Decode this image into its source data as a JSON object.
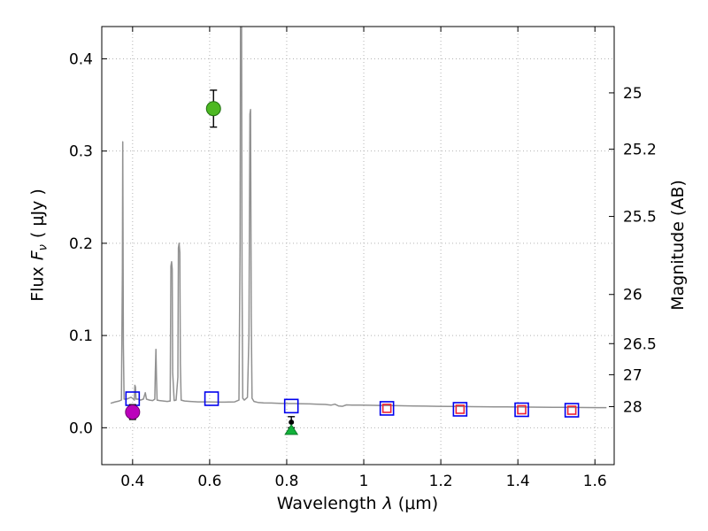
{
  "chart_data": {
    "type": "line+scatter",
    "title": "",
    "xlabel": "Wavelength λ (μm)",
    "xlabel_parts": {
      "prefix": "Wavelength",
      "symbol": "λ",
      "unit": "(μm)"
    },
    "ylabel_left": "Flux Fν ( μJy )",
    "ylabel_left_parts": {
      "prefix": "Flux",
      "symbol": "F",
      "subscript": "ν",
      "unit": "( μJy )"
    },
    "ylabel_right": "Magnitude (AB)",
    "xlim": [
      0.32,
      1.65
    ],
    "ylim": [
      -0.04,
      0.435
    ],
    "grid": {
      "show": true,
      "style": "dotted",
      "color": "#b3b3b3"
    },
    "frame_color": "#000000",
    "x_ticks": [
      {
        "value": 0.4,
        "label": "0.4"
      },
      {
        "value": 0.6,
        "label": "0.6"
      },
      {
        "value": 0.8,
        "label": "0.8"
      },
      {
        "value": 1.0,
        "label": "1"
      },
      {
        "value": 1.2,
        "label": "1.2"
      },
      {
        "value": 1.4,
        "label": "1.4"
      },
      {
        "value": 1.6,
        "label": "1.6"
      }
    ],
    "y_ticks_left": [
      {
        "value": 0.0,
        "label": "0.0"
      },
      {
        "value": 0.1,
        "label": "0.1"
      },
      {
        "value": 0.2,
        "label": "0.2"
      },
      {
        "value": 0.3,
        "label": "0.3"
      },
      {
        "value": 0.4,
        "label": "0.4"
      }
    ],
    "y_ticks_right": [
      {
        "value": 0.3631,
        "label": "25"
      },
      {
        "value": 0.302,
        "label": "25.2"
      },
      {
        "value": 0.2291,
        "label": "25.5"
      },
      {
        "value": 0.1445,
        "label": "26"
      },
      {
        "value": 0.0912,
        "label": "26.5"
      },
      {
        "value": 0.0575,
        "label": "27"
      },
      {
        "value": 0.0229,
        "label": "28"
      }
    ],
    "spectrum": {
      "name": "model-spectrum",
      "color": "#919191",
      "linewidth": 1.5,
      "points": [
        [
          0.343,
          0.0265
        ],
        [
          0.355,
          0.028
        ],
        [
          0.365,
          0.029
        ],
        [
          0.371,
          0.03
        ],
        [
          0.3735,
          0.17
        ],
        [
          0.3745,
          0.31
        ],
        [
          0.376,
          0.09
        ],
        [
          0.378,
          0.031
        ],
        [
          0.384,
          0.031
        ],
        [
          0.39,
          0.032
        ],
        [
          0.3955,
          0.033
        ],
        [
          0.4,
          0.032
        ],
        [
          0.4045,
          0.03
        ],
        [
          0.406,
          0.046
        ],
        [
          0.4075,
          0.044
        ],
        [
          0.409,
          0.031
        ],
        [
          0.415,
          0.031
        ],
        [
          0.42,
          0.03
        ],
        [
          0.428,
          0.031
        ],
        [
          0.433,
          0.038
        ],
        [
          0.436,
          0.031
        ],
        [
          0.444,
          0.03
        ],
        [
          0.452,
          0.0295
        ],
        [
          0.4575,
          0.031
        ],
        [
          0.459,
          0.06
        ],
        [
          0.4605,
          0.085
        ],
        [
          0.462,
          0.055
        ],
        [
          0.4635,
          0.03
        ],
        [
          0.47,
          0.0295
        ],
        [
          0.48,
          0.029
        ],
        [
          0.49,
          0.0285
        ],
        [
          0.4975,
          0.029
        ],
        [
          0.4995,
          0.175
        ],
        [
          0.5012,
          0.18
        ],
        [
          0.5028,
          0.172
        ],
        [
          0.504,
          0.06
        ],
        [
          0.508,
          0.0295
        ],
        [
          0.513,
          0.03
        ],
        [
          0.5175,
          0.055
        ],
        [
          0.519,
          0.195
        ],
        [
          0.5208,
          0.2
        ],
        [
          0.5225,
          0.19
        ],
        [
          0.524,
          0.07
        ],
        [
          0.526,
          0.03
        ],
        [
          0.535,
          0.029
        ],
        [
          0.55,
          0.0285
        ],
        [
          0.57,
          0.028
        ],
        [
          0.59,
          0.028
        ],
        [
          0.61,
          0.0278
        ],
        [
          0.63,
          0.0277
        ],
        [
          0.65,
          0.0278
        ],
        [
          0.665,
          0.028
        ],
        [
          0.676,
          0.03
        ],
        [
          0.679,
          0.2
        ],
        [
          0.6805,
          0.52
        ],
        [
          0.6825,
          0.52
        ],
        [
          0.684,
          0.16
        ],
        [
          0.686,
          0.032
        ],
        [
          0.69,
          0.03
        ],
        [
          0.698,
          0.033
        ],
        [
          0.702,
          0.1
        ],
        [
          0.7045,
          0.34
        ],
        [
          0.7062,
          0.345
        ],
        [
          0.708,
          0.12
        ],
        [
          0.71,
          0.032
        ],
        [
          0.715,
          0.0285
        ],
        [
          0.725,
          0.0275
        ],
        [
          0.74,
          0.027
        ],
        [
          0.76,
          0.0268
        ],
        [
          0.78,
          0.0265
        ],
        [
          0.8,
          0.0262
        ],
        [
          0.82,
          0.0262
        ],
        [
          0.84,
          0.026
        ],
        [
          0.86,
          0.0258
        ],
        [
          0.88,
          0.0255
        ],
        [
          0.9,
          0.0253
        ],
        [
          0.915,
          0.0245
        ],
        [
          0.925,
          0.0255
        ],
        [
          0.935,
          0.0235
        ],
        [
          0.945,
          0.0232
        ],
        [
          0.955,
          0.0248
        ],
        [
          0.97,
          0.0246
        ],
        [
          0.99,
          0.0245
        ],
        [
          1.01,
          0.0244
        ],
        [
          1.04,
          0.0242
        ],
        [
          1.07,
          0.024
        ],
        [
          1.1,
          0.0238
        ],
        [
          1.13,
          0.0236
        ],
        [
          1.16,
          0.0234
        ],
        [
          1.19,
          0.0232
        ],
        [
          1.22,
          0.0231
        ],
        [
          1.25,
          0.023
        ],
        [
          1.28,
          0.0229
        ],
        [
          1.31,
          0.0228
        ],
        [
          1.34,
          0.0227
        ],
        [
          1.37,
          0.0226
        ],
        [
          1.4,
          0.0225
        ],
        [
          1.43,
          0.0224
        ],
        [
          1.46,
          0.0223
        ],
        [
          1.49,
          0.0222
        ],
        [
          1.52,
          0.0221
        ],
        [
          1.55,
          0.022
        ],
        [
          1.58,
          0.0219
        ],
        [
          1.61,
          0.0218
        ],
        [
          1.63,
          0.0218
        ]
      ]
    },
    "model_photometry_blue_squares": {
      "name": "model-photometry",
      "color": "#0000ee",
      "size": 15,
      "x": [
        0.4,
        0.605,
        0.812,
        1.06,
        1.25,
        1.41,
        1.54
      ],
      "y": [
        0.0315,
        0.0315,
        0.0235,
        0.021,
        0.02,
        0.0195,
        0.019
      ]
    },
    "model_photometry_red_squares": {
      "name": "model-photometry-alt",
      "color": "#ee2233",
      "size": 9,
      "x": [
        1.06,
        1.25,
        1.41,
        1.54
      ],
      "y": [
        0.021,
        0.02,
        0.0195,
        0.019
      ]
    },
    "observed_points": [
      {
        "name": "observed-flux-0.4um",
        "x": 0.4,
        "y": 0.017,
        "yerr": 0.008,
        "marker": "circle",
        "color": "#bb00bb",
        "edge": "#6e006e",
        "radius": 8
      },
      {
        "name": "observed-flux-0.6um",
        "x": 0.61,
        "y": 0.346,
        "yerr": 0.02,
        "marker": "circle",
        "color": "#4db822",
        "edge": "#1f6e0f",
        "radius": 8
      },
      {
        "name": "observed-flux-0.8um",
        "x": 0.812,
        "y": 0.006,
        "yerr": 0.006,
        "marker": "point",
        "color": "#000000",
        "edge": "#000000",
        "radius": 2.5
      }
    ],
    "upper_limit": {
      "name": "upper-limit-0.8um",
      "x": 0.812,
      "y": -0.002,
      "marker": "triangle-up",
      "color": "#12b23a",
      "half_width": 7,
      "height": 11
    },
    "errorbar_color": "#000000"
  }
}
